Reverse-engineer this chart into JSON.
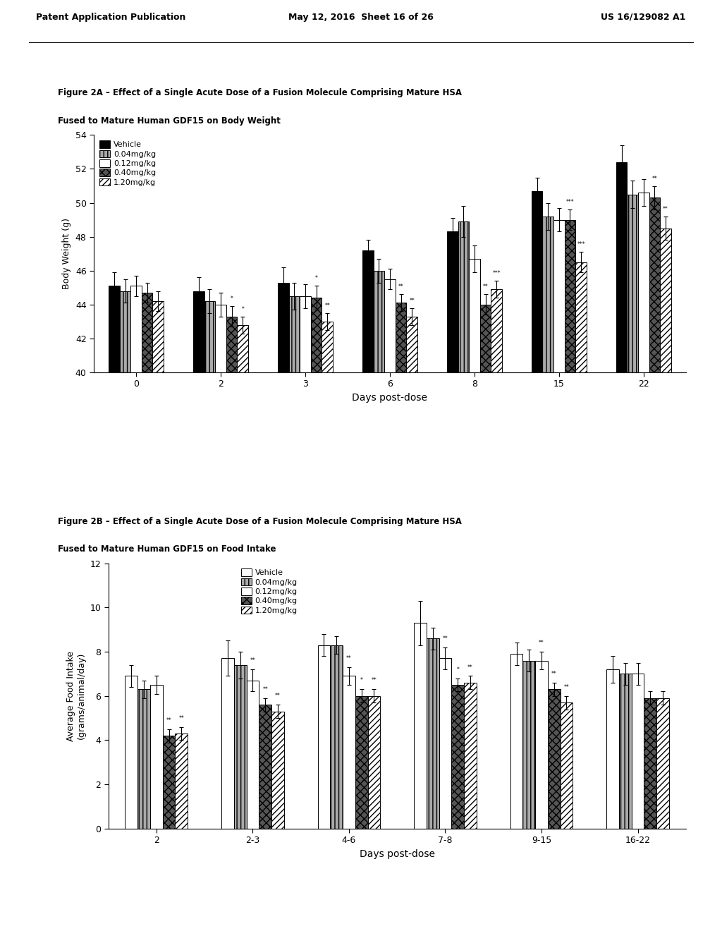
{
  "figA": {
    "title_line1": "Figure 2A – Effect of a Single Acute Dose of a Fusion Molecule Comprising Mature HSA",
    "title_line2": "Fused to Mature Human GDF15 on Body Weight",
    "xlabel": "Days post-dose",
    "ylabel": "Body Weight (g)",
    "ylim": [
      40,
      54
    ],
    "yticks": [
      40,
      42,
      44,
      46,
      48,
      50,
      52,
      54
    ],
    "categories": [
      "0",
      "2",
      "3",
      "6",
      "8",
      "15",
      "22"
    ],
    "legend_labels": [
      "Vehicle",
      "0.04mg/kg",
      "0.12mg/kg",
      "0.40mg/kg",
      "1.20mg/kg"
    ],
    "values": {
      "Vehicle": [
        45.1,
        44.8,
        45.3,
        47.2,
        48.3,
        50.7,
        52.4
      ],
      "0.04mg/kg": [
        44.8,
        44.2,
        44.5,
        46.0,
        48.9,
        49.2,
        50.5
      ],
      "0.12mg/kg": [
        45.1,
        44.0,
        44.5,
        45.5,
        46.7,
        49.0,
        50.6
      ],
      "0.40mg/kg": [
        44.7,
        43.3,
        44.4,
        44.1,
        44.0,
        49.0,
        50.3
      ],
      "1.20mg/kg": [
        44.2,
        42.8,
        43.0,
        43.3,
        44.9,
        46.5,
        48.5
      ]
    },
    "errors": {
      "Vehicle": [
        0.8,
        0.8,
        0.9,
        0.6,
        0.8,
        0.8,
        1.0
      ],
      "0.04mg/kg": [
        0.7,
        0.7,
        0.8,
        0.7,
        0.9,
        0.8,
        0.8
      ],
      "0.12mg/kg": [
        0.6,
        0.7,
        0.7,
        0.6,
        0.8,
        0.7,
        0.8
      ],
      "0.40mg/kg": [
        0.6,
        0.6,
        0.7,
        0.5,
        0.6,
        0.6,
        0.7
      ],
      "1.20mg/kg": [
        0.6,
        0.5,
        0.5,
        0.5,
        0.5,
        0.6,
        0.7
      ]
    },
    "sig_markers": {
      "Vehicle": [
        "",
        "",
        "",
        "",
        "",
        "",
        ""
      ],
      "0.04mg/kg": [
        "",
        "",
        "",
        "",
        "",
        "",
        ""
      ],
      "0.12mg/kg": [
        "",
        "",
        "",
        "",
        "",
        "",
        ""
      ],
      "0.40mg/kg": [
        "",
        "*",
        "*",
        "**",
        "**",
        "***",
        "**"
      ],
      "1.20mg/kg": [
        "",
        "*",
        "**",
        "**",
        "***",
        "***",
        "**"
      ]
    },
    "bar_styles": {
      "Vehicle": {
        "facecolor": "#000000",
        "hatch": "",
        "edgecolor": "#000000"
      },
      "0.04mg/kg": {
        "facecolor": "#aaaaaa",
        "hatch": "|||",
        "edgecolor": "#000000"
      },
      "0.12mg/kg": {
        "facecolor": "#ffffff",
        "hatch": "",
        "edgecolor": "#000000"
      },
      "0.40mg/kg": {
        "facecolor": "#555555",
        "hatch": "xxx",
        "edgecolor": "#000000"
      },
      "1.20mg/kg": {
        "facecolor": "#ffffff",
        "hatch": "////",
        "edgecolor": "#000000"
      }
    }
  },
  "figB": {
    "title_line1": "Figure 2B – Effect of a Single Acute Dose of a Fusion Molecule Comprising Mature HSA",
    "title_line2": "Fused to Mature Human GDF15 on Food Intake",
    "xlabel": "Days post-dose",
    "ylabel": "Average Food Intake\n(grams/animal/day)",
    "ylim": [
      0,
      12
    ],
    "yticks": [
      0,
      2,
      4,
      6,
      8,
      10,
      12
    ],
    "categories": [
      "2",
      "2-3",
      "4-6",
      "7-8",
      "9-15",
      "16-22"
    ],
    "legend_labels": [
      "Vehicle",
      "0.04mg/kg",
      "0.12mg/kg",
      "0.40mg/kg",
      "1.20mg/kg"
    ],
    "values": {
      "Vehicle": [
        6.9,
        7.7,
        8.3,
        9.3,
        7.9,
        7.2
      ],
      "0.04mg/kg": [
        6.3,
        7.4,
        8.3,
        8.6,
        7.6,
        7.0
      ],
      "0.12mg/kg": [
        6.5,
        6.7,
        6.9,
        7.7,
        7.6,
        7.0
      ],
      "0.40mg/kg": [
        4.2,
        5.6,
        6.0,
        6.5,
        6.3,
        5.9
      ],
      "1.20mg/kg": [
        4.3,
        5.3,
        6.0,
        6.6,
        5.7,
        5.9
      ]
    },
    "errors": {
      "Vehicle": [
        0.5,
        0.8,
        0.5,
        1.0,
        0.5,
        0.6
      ],
      "0.04mg/kg": [
        0.4,
        0.6,
        0.4,
        0.5,
        0.5,
        0.5
      ],
      "0.12mg/kg": [
        0.4,
        0.5,
        0.4,
        0.5,
        0.4,
        0.5
      ],
      "0.40mg/kg": [
        0.3,
        0.3,
        0.3,
        0.3,
        0.3,
        0.3
      ],
      "1.20mg/kg": [
        0.3,
        0.3,
        0.3,
        0.3,
        0.3,
        0.3
      ]
    },
    "sig_markers": {
      "Vehicle": [
        "",
        "",
        "",
        "",
        "",
        ""
      ],
      "0.04mg/kg": [
        "",
        "",
        "",
        "",
        "",
        ""
      ],
      "0.12mg/kg": [
        "",
        "**",
        "**",
        "**",
        "**",
        ""
      ],
      "0.40mg/kg": [
        "**",
        "**",
        "*",
        "*",
        "**",
        ""
      ],
      "1.20mg/kg": [
        "**",
        "**",
        "**",
        "**",
        "**",
        ""
      ]
    },
    "bar_styles": {
      "Vehicle": {
        "facecolor": "#ffffff",
        "hatch": "",
        "edgecolor": "#000000"
      },
      "0.04mg/kg": {
        "facecolor": "#aaaaaa",
        "hatch": "|||",
        "edgecolor": "#000000"
      },
      "0.12mg/kg": {
        "facecolor": "#ffffff",
        "hatch": "",
        "edgecolor": "#000000"
      },
      "0.40mg/kg": {
        "facecolor": "#555555",
        "hatch": "xxx",
        "edgecolor": "#000000"
      },
      "1.20mg/kg": {
        "facecolor": "#ffffff",
        "hatch": "////",
        "edgecolor": "#000000"
      }
    }
  },
  "header": {
    "left": "Patent Application Publication",
    "center": "May 12, 2016  Sheet 16 of 26",
    "right": "US 16/129082 A1"
  }
}
